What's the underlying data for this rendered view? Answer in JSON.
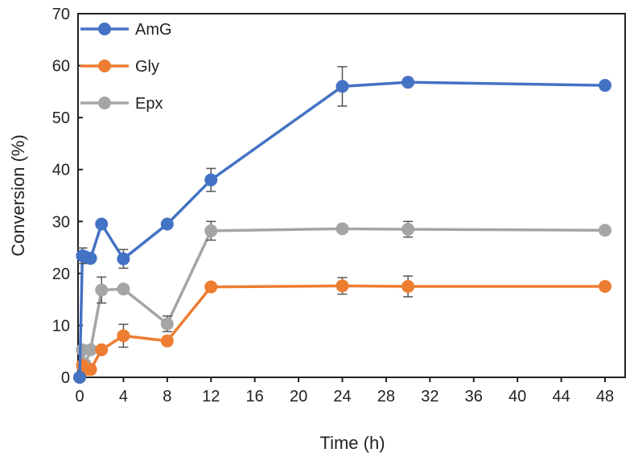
{
  "chart_data": {
    "type": "line",
    "title": "",
    "xlabel": "Time (h)",
    "ylabel": "Conversion (%)",
    "xlim": [
      0,
      50
    ],
    "ylim": [
      0,
      70
    ],
    "xticks": [
      0,
      4,
      8,
      12,
      16,
      20,
      24,
      28,
      32,
      36,
      40,
      44,
      48
    ],
    "yticks": [
      0,
      10,
      20,
      30,
      40,
      50,
      60,
      70
    ],
    "grid": false,
    "legend": "top-left",
    "x": [
      0,
      0.25,
      0.5,
      1,
      2,
      4,
      8,
      12,
      24,
      30,
      48
    ],
    "series": [
      {
        "name": "AmG",
        "color": "#4472C4",
        "values": [
          0,
          23.4,
          23.2,
          22.9,
          29.5,
          22.8,
          29.5,
          38,
          56,
          56.8,
          56.2
        ],
        "errors": [
          0,
          1.5,
          0,
          0,
          0,
          1.8,
          0,
          2.2,
          3.8,
          0,
          0
        ]
      },
      {
        "name": "Gly",
        "color": "#ED7D31",
        "values": [
          0,
          2.3,
          1.5,
          1.5,
          5.3,
          8,
          7,
          17.4,
          17.6,
          17.5,
          17.5
        ],
        "errors": [
          0,
          0,
          0,
          0,
          0,
          2.2,
          0.8,
          0,
          1.6,
          2,
          0
        ]
      },
      {
        "name": "Epx",
        "color": "#A5A5A5",
        "values": [
          0,
          5.3,
          2.5,
          5.3,
          16.8,
          17,
          10.3,
          28.2,
          28.6,
          28.5,
          28.3
        ],
        "errors": [
          0,
          0,
          0,
          0,
          2.5,
          0,
          1.5,
          1.8,
          0,
          1.5,
          0
        ]
      }
    ]
  }
}
